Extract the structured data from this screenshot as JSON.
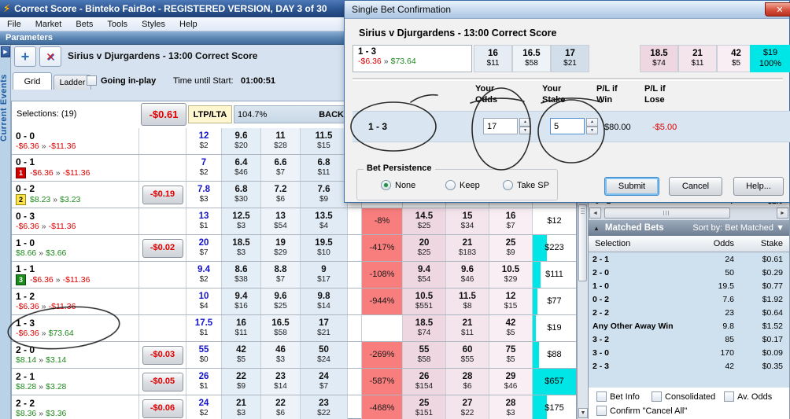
{
  "window": {
    "title": "Correct Score - Binteko FairBot - REGISTERED VERSION, DAY 3 of 30",
    "menu": [
      "File",
      "Market",
      "Bets",
      "Tools",
      "Styles",
      "Help"
    ],
    "params_label": "Parameters",
    "sidebar_label": "Current Events",
    "market_title": "Sirius v Djurgardens - 13:00 Correct Score",
    "tabs": [
      "Grid",
      "Ladder"
    ],
    "going_inplay": "Going in-play",
    "time_label": "Time until Start:",
    "time_value": "01:00:51"
  },
  "icons": {
    "bolt": "⚡",
    "plus": "+",
    "delete": "✕",
    "expand": "▶",
    "close": "✕",
    "up_triangle": "▲",
    "down_triangle": "▼",
    "left_arrow": "◄",
    "right_arrow": "►",
    "spin_up": "▲",
    "spin_down": "▼",
    "sort_arrow": "▼",
    "sep": "»"
  },
  "grid": {
    "selections_label": "Selections: (19)",
    "total_pl": "-$0.61",
    "ltp_lta": "LTP/LTA",
    "overround": "104.7%",
    "back_label": "BACK",
    "rows": [
      {
        "score": "0 - 0",
        "badge": null,
        "pl": [
          "-$6.36",
          "-$11.36"
        ],
        "plc": [
          "r",
          "r"
        ],
        "btn": null,
        "back": [
          [
            "12",
            "$2"
          ],
          [
            "9.6",
            "$20"
          ],
          [
            "11",
            "$28"
          ],
          [
            "11.5",
            "$15"
          ]
        ],
        "pct": null,
        "lay": null,
        "money": null,
        "bar": 0
      },
      {
        "score": "0 - 1",
        "badge": {
          "t": "1",
          "c": "red"
        },
        "pl": [
          "-$6.36",
          "-$11.36"
        ],
        "plc": [
          "r",
          "r"
        ],
        "btn": null,
        "back": [
          [
            "7",
            "$2"
          ],
          [
            "6.4",
            "$46"
          ],
          [
            "6.6",
            "$7"
          ],
          [
            "6.8",
            "$11"
          ]
        ],
        "pct": null,
        "lay": null,
        "money": null,
        "bar": 0
      },
      {
        "score": "0 - 2",
        "badge": {
          "t": "2",
          "c": "yellow"
        },
        "pl": [
          "$8.23",
          "$3.23"
        ],
        "plc": [
          "g",
          "g"
        ],
        "btn": "-$0.19",
        "back": [
          [
            "7.8",
            "$3"
          ],
          [
            "6.8",
            "$30"
          ],
          [
            "7.2",
            "$6"
          ],
          [
            "7.6",
            "$9"
          ]
        ],
        "pct": null,
        "lay": null,
        "money": null,
        "bar": 0
      },
      {
        "score": "0 - 3",
        "badge": null,
        "pl": [
          "-$6.36",
          "-$11.36"
        ],
        "plc": [
          "r",
          "r"
        ],
        "btn": null,
        "back": [
          [
            "13",
            "$1"
          ],
          [
            "12.5",
            "$3"
          ],
          [
            "13",
            "$54"
          ],
          [
            "13.5",
            "$4"
          ]
        ],
        "pct": "-8%",
        "lay": [
          [
            "14.5",
            "$25"
          ],
          [
            "15",
            "$34"
          ],
          [
            "16",
            "$7"
          ]
        ],
        "money": "$12",
        "bar": 0
      },
      {
        "score": "1 - 0",
        "badge": null,
        "pl": [
          "$8.66",
          "$3.66"
        ],
        "plc": [
          "g",
          "g"
        ],
        "btn": "-$0.02",
        "back": [
          [
            "20",
            "$7"
          ],
          [
            "18.5",
            "$3"
          ],
          [
            "19",
            "$29"
          ],
          [
            "19.5",
            "$10"
          ]
        ],
        "pct": "-417%",
        "lay": [
          [
            "20",
            "$25"
          ],
          [
            "21",
            "$183"
          ],
          [
            "25",
            "$9"
          ]
        ],
        "money": "$223",
        "bar": 0.33
      },
      {
        "score": "1 - 1",
        "badge": {
          "t": "3",
          "c": "green"
        },
        "pl": [
          "-$6.36",
          "-$11.36"
        ],
        "plc": [
          "r",
          "r"
        ],
        "btn": null,
        "back": [
          [
            "9.4",
            "$2"
          ],
          [
            "8.6",
            "$38"
          ],
          [
            "8.8",
            "$7"
          ],
          [
            "9",
            "$17"
          ]
        ],
        "pct": "-108%",
        "lay": [
          [
            "9.4",
            "$54"
          ],
          [
            "9.6",
            "$46"
          ],
          [
            "10.5",
            "$29"
          ]
        ],
        "money": "$111",
        "bar": 0.19
      },
      {
        "score": "1 - 2",
        "badge": null,
        "pl": [
          "-$6.36",
          "-$11.36"
        ],
        "plc": [
          "r",
          "r"
        ],
        "btn": null,
        "back": [
          [
            "10",
            "$4"
          ],
          [
            "9.4",
            "$16"
          ],
          [
            "9.6",
            "$25"
          ],
          [
            "9.8",
            "$14"
          ]
        ],
        "pct": "-944%",
        "lay": [
          [
            "10.5",
            "$551"
          ],
          [
            "11.5",
            "$8"
          ],
          [
            "12",
            "$15"
          ]
        ],
        "money": "$77",
        "bar": 0.1
      },
      {
        "score": "1 - 3",
        "badge": null,
        "pl": [
          "-$6.36",
          "$73.64"
        ],
        "plc": [
          "r",
          "g"
        ],
        "btn": null,
        "back": [
          [
            "17.5",
            "$1"
          ],
          [
            "16",
            "$11"
          ],
          [
            "16.5",
            "$58"
          ],
          [
            "17",
            "$21"
          ]
        ],
        "pct": "",
        "lay": [
          [
            "18.5",
            "$74"
          ],
          [
            "21",
            "$11"
          ],
          [
            "42",
            "$5"
          ]
        ],
        "money": "$19",
        "bar": 0.07
      },
      {
        "score": "2 - 0",
        "badge": null,
        "pl": [
          "$8.14",
          "$3.14"
        ],
        "plc": [
          "g",
          "g"
        ],
        "btn": "-$0.03",
        "back": [
          [
            "55",
            "$0"
          ],
          [
            "42",
            "$5"
          ],
          [
            "46",
            "$3"
          ],
          [
            "50",
            "$24"
          ]
        ],
        "pct": "-269%",
        "lay": [
          [
            "55",
            "$58"
          ],
          [
            "60",
            "$55"
          ],
          [
            "75",
            "$5"
          ]
        ],
        "money": "$88",
        "bar": 0.15
      },
      {
        "score": "2 - 1",
        "badge": null,
        "pl": [
          "$8.28",
          "$3.28"
        ],
        "plc": [
          "g",
          "g"
        ],
        "btn": "-$0.05",
        "back": [
          [
            "26",
            "$1"
          ],
          [
            "22",
            "$9"
          ],
          [
            "23",
            "$14"
          ],
          [
            "24",
            "$7"
          ]
        ],
        "pct": "-587%",
        "lay": [
          [
            "26",
            "$154"
          ],
          [
            "28",
            "$6"
          ],
          [
            "29",
            "$46"
          ]
        ],
        "money": "$657",
        "bar": 1
      },
      {
        "score": "2 - 2",
        "badge": null,
        "pl": [
          "$8.36",
          "$3.36"
        ],
        "plc": [
          "g",
          "g"
        ],
        "btn": "-$0.06",
        "back": [
          [
            "24",
            "$2"
          ],
          [
            "21",
            "$3"
          ],
          [
            "22",
            "$6"
          ],
          [
            "23",
            "$22"
          ]
        ],
        "pct": "-468%",
        "lay": [
          [
            "25",
            "$151"
          ],
          [
            "27",
            "$22"
          ],
          [
            "28",
            "$3"
          ]
        ],
        "money": "$175",
        "bar": 0.33
      }
    ]
  },
  "dialog": {
    "title": "Single Bet Confirmation",
    "market": "Sirius v Djurgardens - 13:00 Correct Score",
    "bet": {
      "selection": "1 - 3",
      "pl1": "-$6.36",
      "pl2": "$73.64",
      "backs": [
        [
          "16",
          "$11"
        ],
        [
          "16.5",
          "$58"
        ],
        [
          "17",
          "$21"
        ]
      ],
      "lays": [
        [
          "18.5",
          "$74"
        ],
        [
          "21",
          "$11"
        ],
        [
          "42",
          "$5"
        ]
      ],
      "traded_amount": "$19",
      "traded_pct": "100%"
    },
    "headers": {
      "odds": "Your\nOdds",
      "stake": "Your\nStake",
      "win": "P/L if\nWin",
      "lose": "P/L if\nLose"
    },
    "row": {
      "selection": "1 - 3",
      "odds": "17",
      "stake": "5",
      "win": "$80.00",
      "lose": "-$5.00"
    },
    "persistence": {
      "label": "Bet Persistence",
      "options": [
        "None",
        "Keep",
        "Take SP"
      ],
      "selected": "None"
    },
    "buttons": [
      "Submit",
      "Cancel",
      "Help..."
    ]
  },
  "matched": {
    "title": "Matched Bets",
    "sort_label": "Sort by: Bet Matched",
    "columns": [
      "Selection",
      "Odds",
      "Stake"
    ],
    "rows": [
      [
        "2 - 1",
        "24",
        "$0.61"
      ],
      [
        "2 - 0",
        "50",
        "$0.29"
      ],
      [
        "1 - 0",
        "19.5",
        "$0.77"
      ],
      [
        "0 - 2",
        "7.6",
        "$1.92"
      ],
      [
        "2 - 2",
        "23",
        "$0.64"
      ],
      [
        "Any Other Away Win",
        "9.8",
        "$1.52"
      ],
      [
        "3 - 2",
        "85",
        "$0.17"
      ],
      [
        "3 - 0",
        "170",
        "$0.09"
      ],
      [
        "2 - 3",
        "42",
        "$0.35"
      ]
    ],
    "sliver": [
      "0 - 1",
      "7",
      "$2.0"
    ],
    "checkboxes": [
      "Bet Info",
      "Consolidated",
      "Av. Odds",
      "Confirm \"Cancel All\""
    ]
  }
}
